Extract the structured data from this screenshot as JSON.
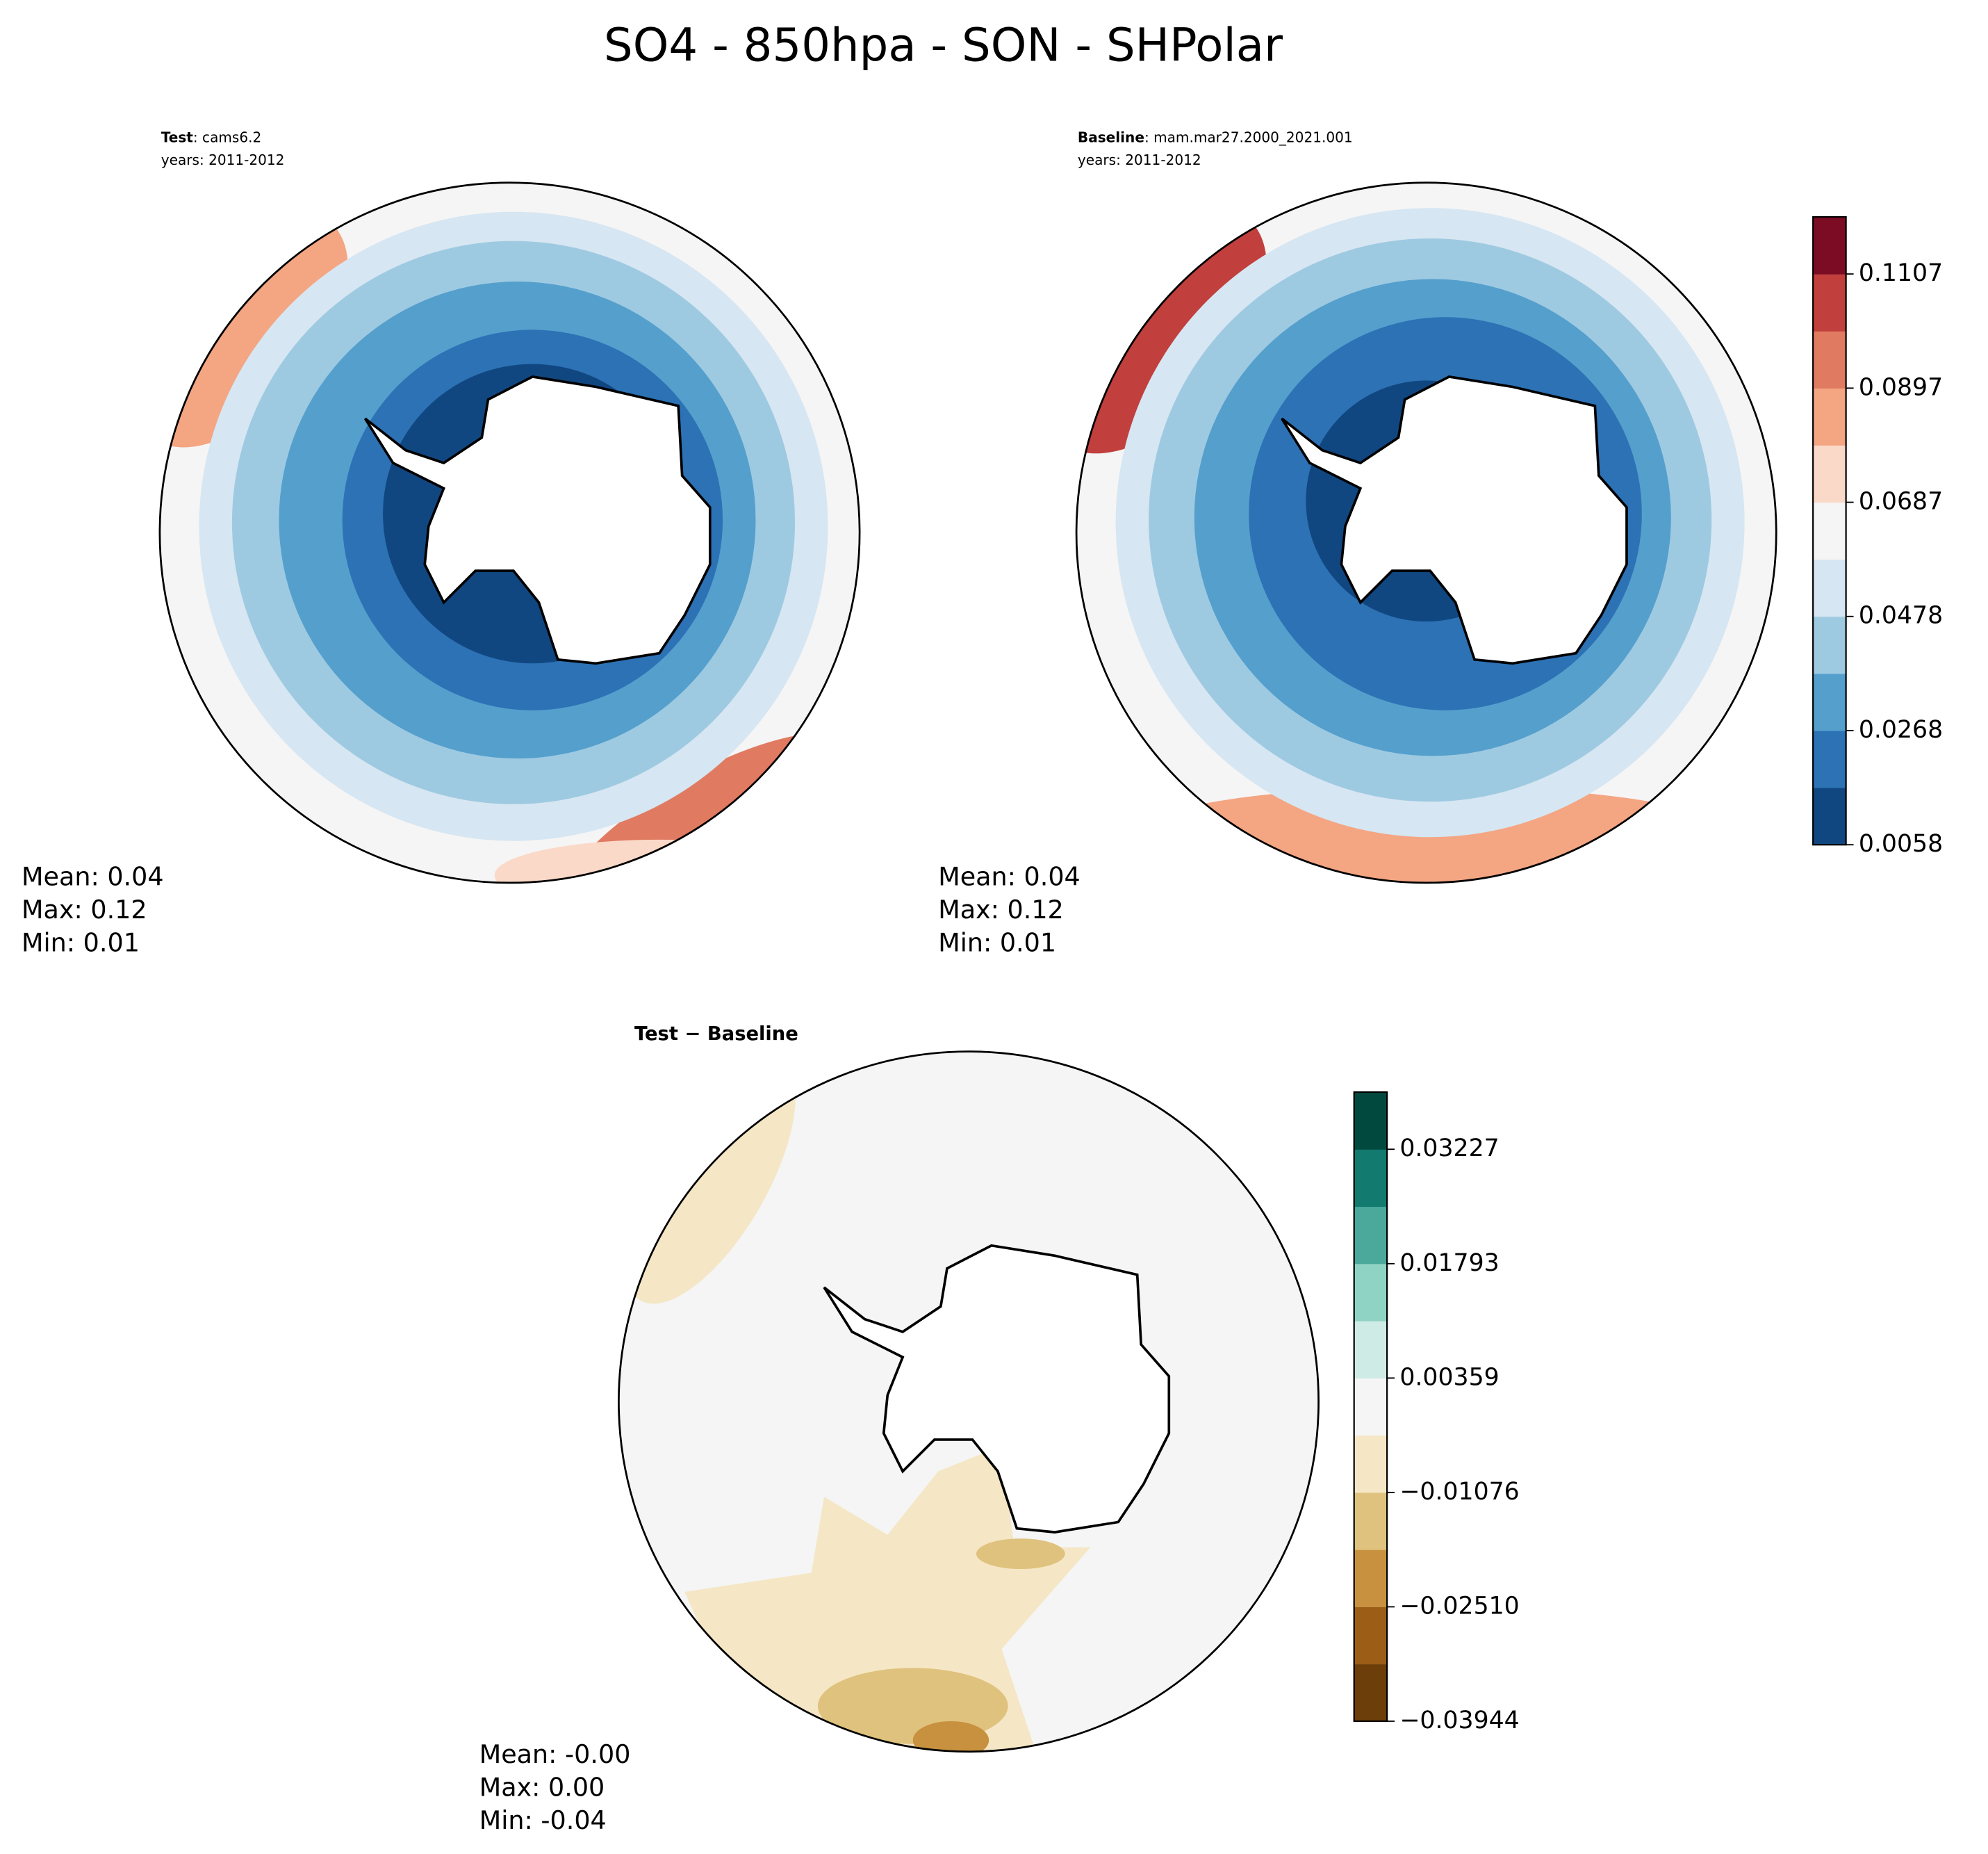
{
  "title": "SO4 - 850hpa - SON - SHPolar",
  "panels": [
    {
      "label_bold": "Test",
      "label_rest": ": cams6.2",
      "years": "years: 2011-2012",
      "stats": [
        "Mean:  0.04",
        "Max:  0.12",
        "Min:  0.01"
      ]
    },
    {
      "label_bold": "Baseline",
      "label_rest": ": mam.mar27.2000_2021.001",
      "years": "years: 2011-2012",
      "stats": [
        "Mean:  0.04",
        "Max:  0.12",
        "Min:  0.01"
      ]
    },
    {
      "label": "Test − Baseline",
      "stats": [
        "Mean: -0.00",
        "Max:  0.00",
        "Min: -0.04"
      ]
    }
  ],
  "colorbars": [
    {
      "colors": [
        "#114781",
        "#2c72b5",
        "#559fcd",
        "#9ecae1",
        "#d6e6f2",
        "#f5f5f5",
        "#fbd9c9",
        "#f4a582",
        "#e07b62",
        "#c13f3c",
        "#7b0c24"
      ],
      "tick_labels": [
        "0.0058",
        "0.0268",
        "0.0478",
        "0.0687",
        "0.0897",
        "0.1107"
      ]
    },
    {
      "colors": [
        "#6b3e0a",
        "#9c5d17",
        "#c8913f",
        "#dfc27d",
        "#f5e7c6",
        "#f4f5f4",
        "#cfebe6",
        "#8fd3c4",
        "#4aa99b",
        "#137a70",
        "#01493e"
      ],
      "tick_labels": [
        "−0.03944",
        "−0.02510",
        "−0.01076",
        "0.00359",
        "0.01793",
        "0.03227"
      ]
    }
  ]
}
